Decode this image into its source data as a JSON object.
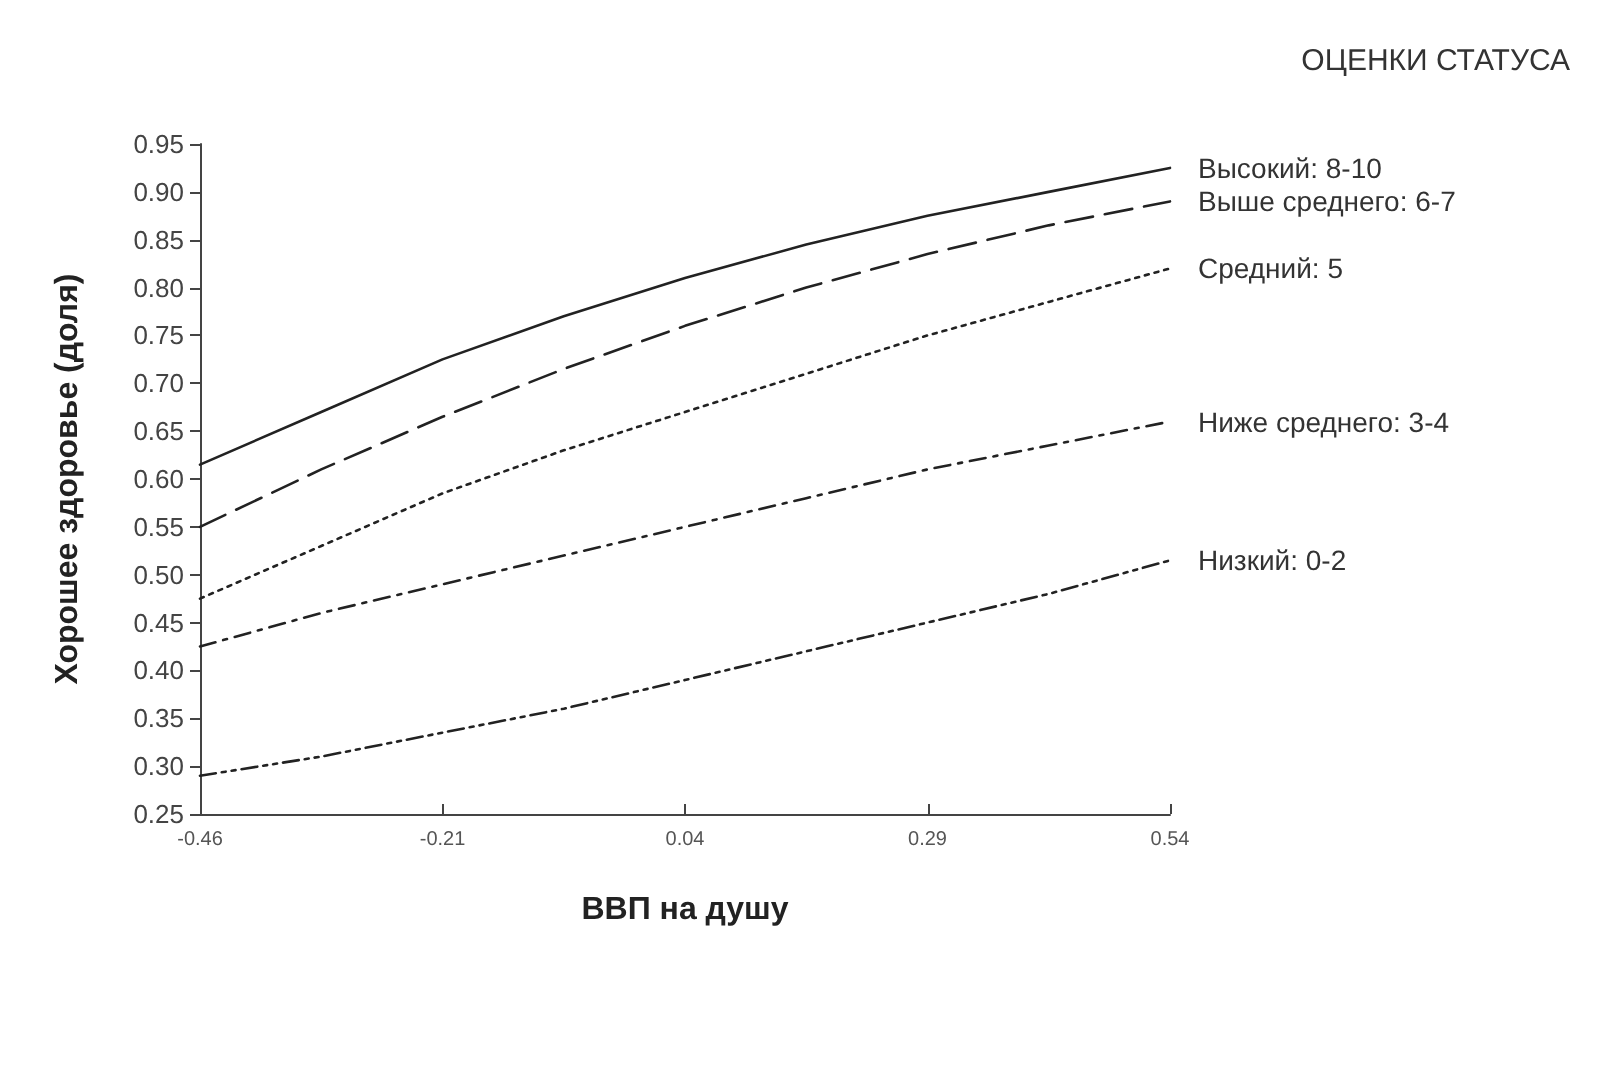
{
  "chart_data": {
    "type": "line",
    "xlabel": "ВВП на душу",
    "ylabel": "Хорошее здоровье (доля)",
    "legend_title": "ОЦЕНКИ СТАТУСА",
    "x": [
      -0.46,
      -0.335,
      -0.21,
      -0.085,
      0.04,
      0.165,
      0.29,
      0.415,
      0.54
    ],
    "series": [
      {
        "name": "Высокий: 8-10",
        "color": "#222222",
        "line_style": "solid",
        "values": [
          0.615,
          0.67,
          0.725,
          0.77,
          0.81,
          0.845,
          0.875,
          0.9,
          0.925
        ]
      },
      {
        "name": "Выше среднего: 6-7",
        "color": "#222222",
        "line_style": "longdash",
        "values": [
          0.55,
          0.61,
          0.665,
          0.715,
          0.76,
          0.8,
          0.835,
          0.865,
          0.89
        ]
      },
      {
        "name": "Средний: 5",
        "color": "#222222",
        "line_style": "dotted",
        "values": [
          0.475,
          0.53,
          0.585,
          0.63,
          0.67,
          0.71,
          0.75,
          0.785,
          0.82
        ]
      },
      {
        "name": "Ниже среднего: 3-4",
        "color": "#222222",
        "line_style": "dashdot",
        "values": [
          0.425,
          0.46,
          0.49,
          0.52,
          0.55,
          0.58,
          0.61,
          0.635,
          0.66
        ]
      },
      {
        "name": "Низкий: 0-2",
        "color": "#222222",
        "line_style": "dashdotdot",
        "values": [
          0.29,
          0.31,
          0.335,
          0.36,
          0.39,
          0.42,
          0.45,
          0.48,
          0.515
        ]
      }
    ],
    "xlim": [
      -0.46,
      0.54
    ],
    "xticks": [
      -0.46,
      -0.21,
      0.04,
      0.29,
      0.54
    ],
    "ylim": [
      0.25,
      0.95
    ],
    "yticks": [
      {
        "value": 0.25,
        "label": "0.25"
      },
      {
        "value": 0.3,
        "label": "0.30"
      },
      {
        "value": 0.35,
        "label": "0.35"
      },
      {
        "value": 0.4,
        "label": "0.40"
      },
      {
        "value": 0.45,
        "label": "0.45"
      },
      {
        "value": 0.5,
        "label": "0.50"
      },
      {
        "value": 0.55,
        "label": "0.55"
      },
      {
        "value": 0.6,
        "label": "0.60"
      },
      {
        "value": 0.65,
        "label": "0.65"
      },
      {
        "value": 0.7,
        "label": "0.70"
      },
      {
        "value": 0.75,
        "label": "0.75"
      },
      {
        "value": 0.8,
        "label": "0.80"
      },
      {
        "value": 0.85,
        "label": "0.85"
      },
      {
        "value": 0.9,
        "label": "0.90"
      },
      {
        "value": 0.95,
        "label": "0.95"
      }
    ],
    "marker": "none",
    "grid": false,
    "legend": false
  }
}
